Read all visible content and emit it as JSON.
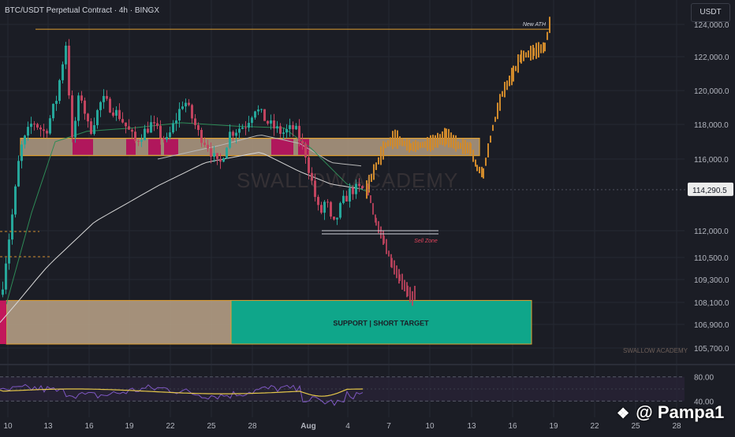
{
  "header": {
    "title": "BTC/USDT Perpetual Contract · 4h · BINGX",
    "currency": "USDT"
  },
  "watermark": "SWALLOW ACADEMY",
  "branding_small": "SWALLOW ACADEMY",
  "attribution": {
    "logo_icon": "binance-diamond-icon",
    "text": "@ Pampa1"
  },
  "colors": {
    "background": "#1b1d25",
    "up_candle": "#26a69a",
    "down_candle": "#c2445f",
    "projection": "#d08a2c",
    "ema_white": "#d8d8d8",
    "ema_green": "#2e8b57",
    "zone_fill": "#bca58a",
    "zone_border": "#e0a030",
    "support_teal": "#0fa68a",
    "rsi_line": "#7e57c2",
    "rsi_ma": "#e6c84a"
  },
  "chart_data": {
    "type": "candlestick",
    "price_axis": {
      "ticks": [
        "124,000.0",
        "122,000.0",
        "120,000.0",
        "118,000.0",
        "116,000.0",
        "112,000.0",
        "110,500.0",
        "109,300.0",
        "108,100.0",
        "106,900.0",
        "105,700.0"
      ],
      "current_price_label": "114,290.5",
      "current_price": 114290.5
    },
    "x_axis": {
      "ticks": [
        "10",
        "13",
        "16",
        "19",
        "22",
        "25",
        "28",
        "Aug",
        "4",
        "7",
        "10",
        "13",
        "16",
        "19",
        "22",
        "25",
        "28"
      ]
    },
    "annotations": {
      "ath_label": "New ATH",
      "ath_level": 123700,
      "sell_zone_label": "Sell Zone",
      "sell_zone_level": 112000,
      "support_label": "SUPPORT | SHORT TARGET",
      "support_range": [
        105900,
        108200
      ],
      "resistance_zone": [
        116200,
        117200
      ]
    },
    "candle_summary": {
      "range_low": 105700,
      "range_high": 123900,
      "last_close": 114290.5,
      "projection_high": 124400,
      "bearish_path_low": 108100
    },
    "rsi": {
      "ticks": [
        "80.00",
        "40.00"
      ],
      "levels": [
        80,
        40
      ]
    }
  }
}
